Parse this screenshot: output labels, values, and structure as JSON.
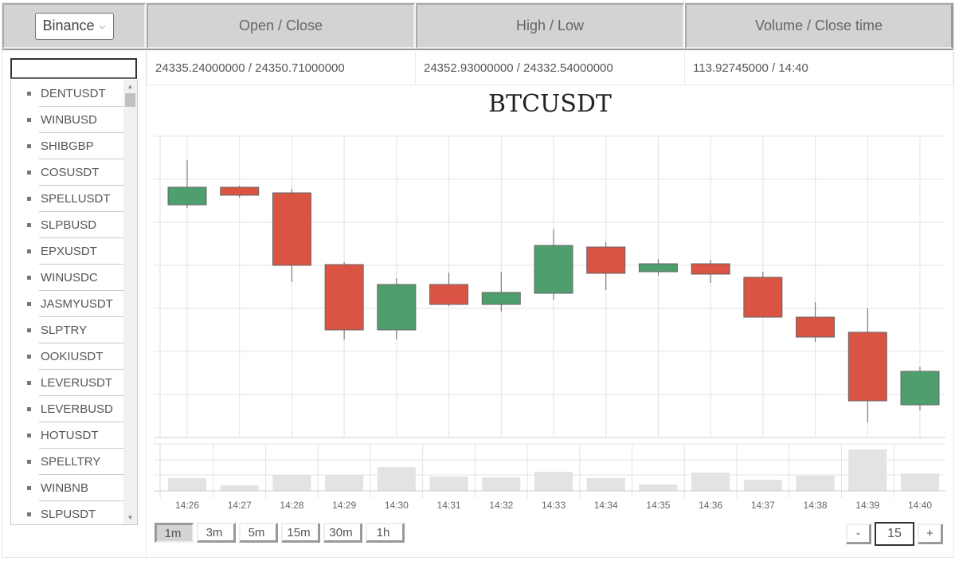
{
  "header": {
    "exchange_select": {
      "value": "Binance"
    },
    "columns": [
      "Open / Close",
      "High / Low",
      "Volume / Close time"
    ]
  },
  "current_candle": {
    "open_close": "24335.24000000 / 24350.71000000",
    "high_low": "24352.93000000 / 24332.54000000",
    "volume_close_time": "113.92745000 / 14:40"
  },
  "sidebar": {
    "search_value": "",
    "symbols": [
      "DENTUSDT",
      "WINBUSD",
      "SHIBGBP",
      "COSUSDT",
      "SPELLUSDT",
      "SLPBUSD",
      "EPXUSDT",
      "WINUSDC",
      "JASMYUSDT",
      "SLPTRY",
      "OOKIUSDT",
      "LEVERUSDT",
      "LEVERBUSD",
      "HOTUSDT",
      "SPELLTRY",
      "WINBNB",
      "SLPUSDT"
    ]
  },
  "chart": {
    "title": "BTCUSDT",
    "up_color": "#4f9e6e",
    "down_color": "#d95443",
    "volume_color": "#e3e3e3"
  },
  "chart_data": {
    "type": "candlestick",
    "title": "BTCUSDT",
    "xlabel": "",
    "ylabel": "",
    "y_axis_labels_visible": false,
    "grid": true,
    "categories": [
      "14:26",
      "14:27",
      "14:28",
      "14:29",
      "14:30",
      "14:31",
      "14:32",
      "14:33",
      "14:34",
      "14:35",
      "14:36",
      "14:37",
      "14:38",
      "14:39",
      "14:40"
    ],
    "candles_pixel_y": [
      {
        "t": "14:26",
        "open": 257,
        "close": 235,
        "high": 201,
        "low": 261,
        "dir": "up"
      },
      {
        "t": "14:27",
        "open": 235,
        "close": 245,
        "high": 233,
        "low": 248,
        "dir": "down"
      },
      {
        "t": "14:28",
        "open": 242,
        "close": 333,
        "high": 237,
        "low": 354,
        "dir": "down"
      },
      {
        "t": "14:29",
        "open": 332,
        "close": 414,
        "high": 329,
        "low": 426,
        "dir": "down"
      },
      {
        "t": "14:30",
        "open": 414,
        "close": 357,
        "high": 349,
        "low": 426,
        "dir": "up"
      },
      {
        "t": "14:31",
        "open": 357,
        "close": 382,
        "high": 342,
        "low": 384,
        "dir": "down"
      },
      {
        "t": "14:32",
        "open": 382,
        "close": 367,
        "high": 341,
        "low": 391,
        "dir": "up"
      },
      {
        "t": "14:33",
        "open": 368,
        "close": 308,
        "high": 288,
        "low": 376,
        "dir": "up"
      },
      {
        "t": "14:34",
        "open": 310,
        "close": 343,
        "high": 304,
        "low": 364,
        "dir": "down"
      },
      {
        "t": "14:35",
        "open": 341,
        "close": 331,
        "high": 325,
        "low": 346,
        "dir": "up"
      },
      {
        "t": "14:36",
        "open": 331,
        "close": 344,
        "high": 326,
        "low": 355,
        "dir": "down"
      },
      {
        "t": "14:37",
        "open": 348,
        "close": 398,
        "high": 341,
        "low": 398,
        "dir": "down"
      },
      {
        "t": "14:38",
        "open": 398,
        "close": 423,
        "high": 379,
        "low": 429,
        "dir": "down"
      },
      {
        "t": "14:39",
        "open": 417,
        "close": 503,
        "high": 387,
        "low": 530,
        "dir": "down"
      },
      {
        "t": "14:40",
        "open": 508,
        "close": 466,
        "high": 460,
        "low": 515,
        "dir": "up"
      }
    ],
    "last_candle_values": {
      "open": 24335.24,
      "close": 24350.71,
      "high": 24352.93,
      "low": 24332.54,
      "volume": 113.92745,
      "close_time": "14:40"
    },
    "volume_relative": [
      16,
      7,
      20,
      20,
      30,
      18,
      17,
      24,
      16,
      8,
      23,
      14,
      19,
      52,
      22
    ]
  },
  "controls": {
    "intervals": [
      "1m",
      "3m",
      "5m",
      "15m",
      "30m",
      "1h"
    ],
    "active_interval": "1m",
    "decrement_label": "-",
    "increment_label": "+",
    "candle_count": "15"
  }
}
